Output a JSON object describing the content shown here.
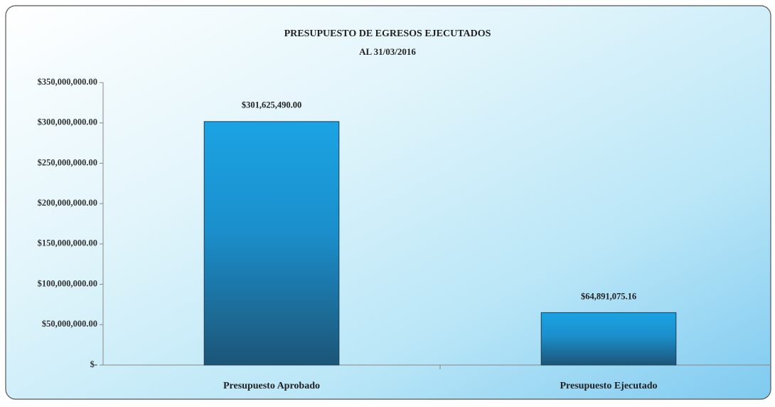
{
  "chart_data": {
    "type": "bar",
    "title": "PRESUPUESTO DE EGRESOS EJECUTADOS",
    "subtitle": "AL 31/03/2016",
    "categories": [
      "Presupuesto Aprobado",
      "Presupuesto Ejecutado"
    ],
    "values": [
      301625490.0,
      64891075.16
    ],
    "value_labels": [
      "$301,625,490.00",
      "$64,891,075.16"
    ],
    "color": "#1ba3e3",
    "ylim": [
      0,
      350000000
    ],
    "yticks": [
      {
        "value": 0,
        "label": "$-"
      },
      {
        "value": 50000000,
        "label": "$50,000,000.00"
      },
      {
        "value": 100000000,
        "label": "$100,000,000.00"
      },
      {
        "value": 150000000,
        "label": "$150,000,000.00"
      },
      {
        "value": 200000000,
        "label": "$200,000,000.00"
      },
      {
        "value": 250000000,
        "label": "$250,000,000.00"
      },
      {
        "value": 300000000,
        "label": "$300,000,000.00"
      },
      {
        "value": 350000000,
        "label": "$350,000,000.00"
      }
    ],
    "grid": false
  }
}
